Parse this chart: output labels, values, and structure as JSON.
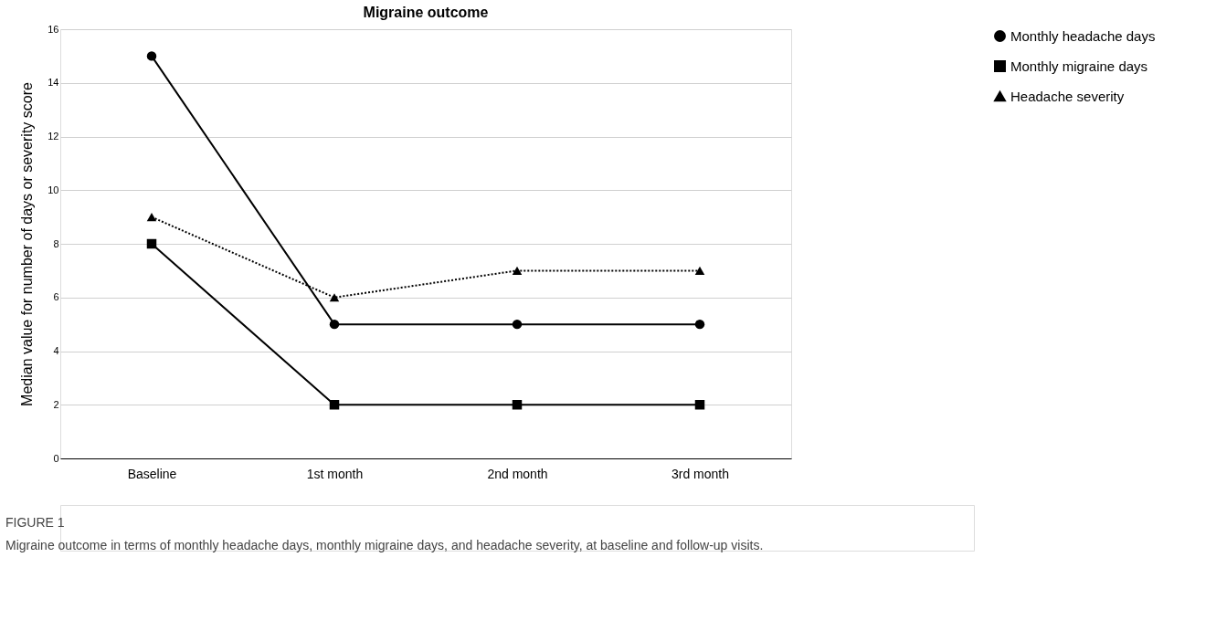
{
  "chart_data": {
    "type": "line",
    "title": "Migraine outcome",
    "ylabel": "Median value for number of days or severity score",
    "categories": [
      "Baseline",
      "1st month",
      "2nd month",
      "3rd month"
    ],
    "series": [
      {
        "name": "Monthly headache days",
        "color": "#000000",
        "marker": "circle",
        "line_style": "solid",
        "values": [
          15,
          5,
          5,
          5
        ]
      },
      {
        "name": "Monthly migraine days",
        "color": "#000000",
        "marker": "square",
        "line_style": "solid",
        "values": [
          8,
          2,
          2,
          2
        ]
      },
      {
        "name": "Headache severity",
        "color": "#000000",
        "marker": "triangle",
        "line_style": "dotted",
        "values": [
          9,
          6,
          7,
          7
        ]
      }
    ],
    "ylim": [
      0,
      16
    ],
    "yticks": [
      0,
      2,
      4,
      6,
      8,
      10,
      12,
      14,
      16
    ],
    "grid": "y",
    "legend": "right",
    "annotations": [
      "FIGURE 1",
      "Migraine outcome in terms of monthly headache days, monthly migraine days, and headache severity, at baseline and follow-up visits."
    ]
  }
}
